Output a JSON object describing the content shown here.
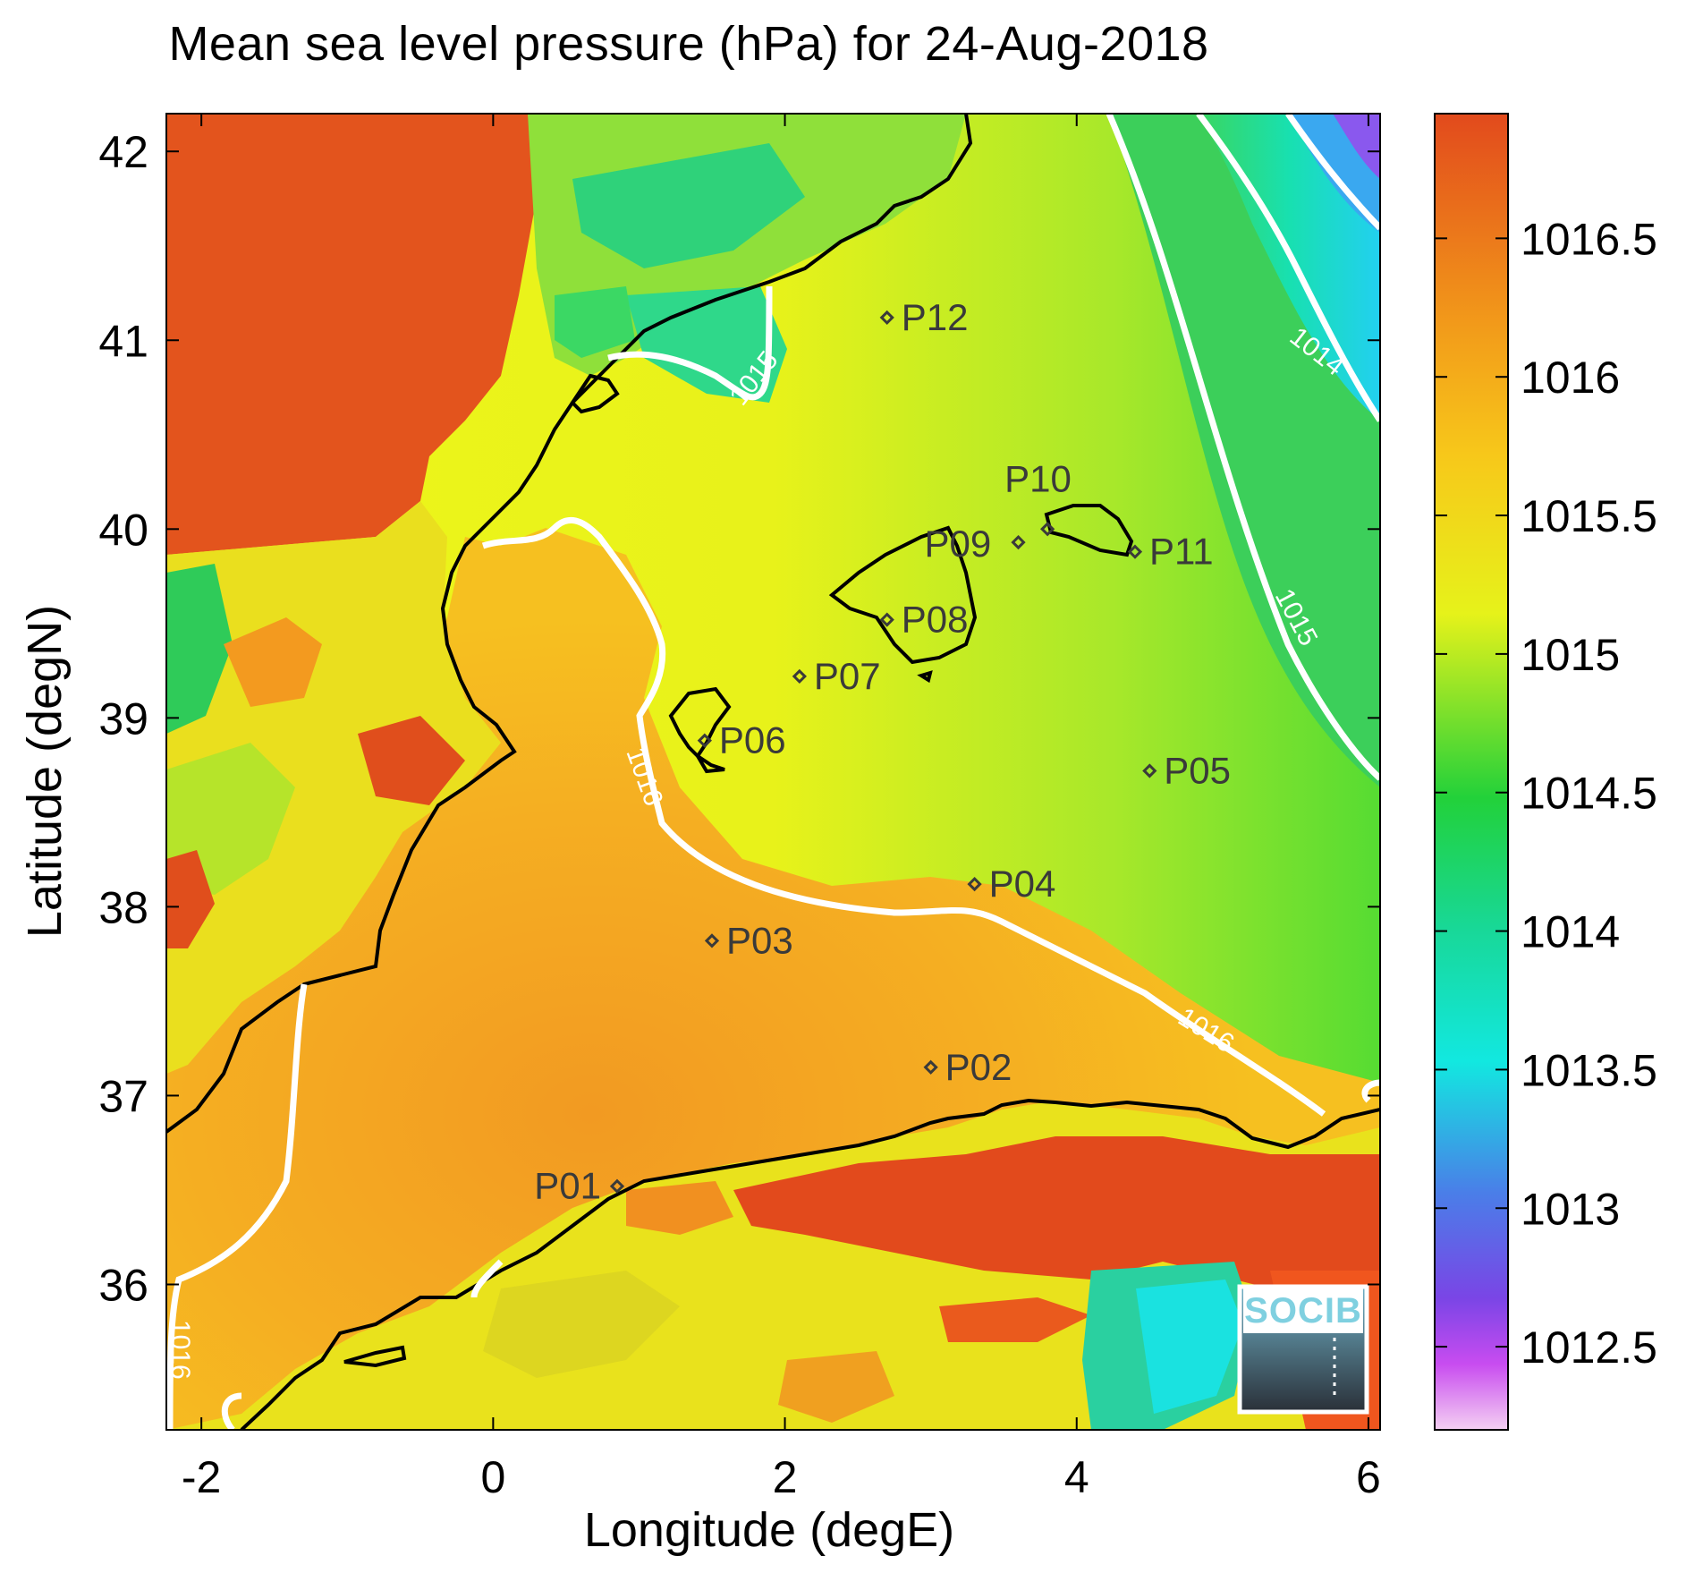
{
  "title": "Mean sea level pressure (hPa) for 24-Aug-2018",
  "x_axis": {
    "label": "Longitude (degE)",
    "ticks": [
      "-2",
      "0",
      "2",
      "4",
      "6"
    ]
  },
  "y_axis": {
    "label": "Latitude (degN)",
    "ticks": [
      "42",
      "41",
      "40",
      "39",
      "38",
      "37",
      "36"
    ]
  },
  "colorbar": {
    "ticks": [
      "1016.5",
      "1016",
      "1015.5",
      "1015",
      "1014.5",
      "1014",
      "1013.5",
      "1013",
      "1012.5"
    ],
    "range": [
      1012.2,
      1016.95
    ],
    "colors": [
      "#e24a1c",
      "#f7b51a",
      "#eef21a",
      "#22d13a",
      "#12e6c8",
      "#5a55e4",
      "#c84cf0",
      "#f0c8f0"
    ]
  },
  "stations": [
    {
      "id": "P01",
      "lon": 0.85,
      "lat": 36.52
    },
    {
      "id": "P02",
      "lon": 3.0,
      "lat": 37.15
    },
    {
      "id": "P03",
      "lon": 1.5,
      "lat": 37.82
    },
    {
      "id": "P04",
      "lon": 3.3,
      "lat": 38.12
    },
    {
      "id": "P05",
      "lon": 4.5,
      "lat": 38.72
    },
    {
      "id": "P06",
      "lon": 1.45,
      "lat": 38.88
    },
    {
      "id": "P07",
      "lon": 2.1,
      "lat": 39.22
    },
    {
      "id": "P08",
      "lon": 2.7,
      "lat": 39.52
    },
    {
      "id": "P09",
      "lon": 3.6,
      "lat": 39.93
    },
    {
      "id": "P10",
      "lon": 3.8,
      "lat": 40.0
    },
    {
      "id": "P11",
      "lon": 4.4,
      "lat": 39.88
    },
    {
      "id": "P12",
      "lon": 2.7,
      "lat": 41.12
    }
  ],
  "contour_labels": [
    "1014",
    "1015",
    "1015",
    "1016",
    "1016",
    "1016"
  ],
  "logo": {
    "text": "SOCIB"
  }
}
